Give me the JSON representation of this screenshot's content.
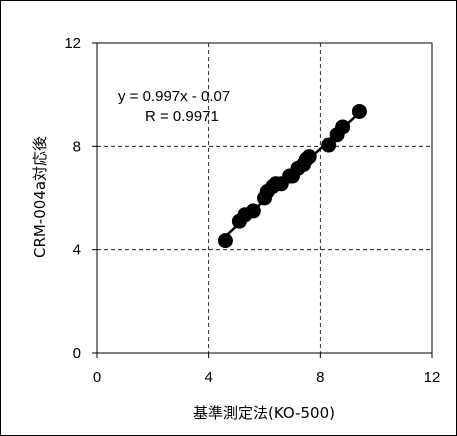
{
  "chart_data": {
    "type": "scatter",
    "xlabel": "基準測定法(KO-500)",
    "ylabel": "CRM-004a対応後",
    "xlim": [
      0,
      12
    ],
    "ylim": [
      0,
      12
    ],
    "x_ticks": [
      "0",
      "4",
      "8",
      "12"
    ],
    "y_ticks": [
      "0",
      "4",
      "8",
      "12"
    ],
    "grid": "dashed",
    "annotation": {
      "equation": "y = 0.997x - 0.07",
      "r_value": "R = 0.9971"
    },
    "trendline": {
      "slope": 0.997,
      "intercept": -0.07,
      "x_range": [
        4.6,
        9.4
      ]
    },
    "points": [
      [
        4.6,
        4.35
      ],
      [
        5.1,
        5.1
      ],
      [
        5.3,
        5.35
      ],
      [
        5.6,
        5.5
      ],
      [
        6.0,
        6.0
      ],
      [
        6.1,
        6.25
      ],
      [
        6.3,
        6.45
      ],
      [
        6.4,
        6.55
      ],
      [
        6.6,
        6.55
      ],
      [
        6.9,
        6.85
      ],
      [
        7.0,
        6.85
      ],
      [
        7.2,
        7.15
      ],
      [
        7.4,
        7.3
      ],
      [
        7.5,
        7.5
      ],
      [
        7.6,
        7.6
      ],
      [
        8.3,
        8.05
      ],
      [
        8.6,
        8.45
      ],
      [
        8.8,
        8.75
      ],
      [
        9.4,
        9.35
      ]
    ],
    "colors": {
      "marker": "#000000",
      "line": "#000000",
      "grid": "#000000"
    }
  }
}
